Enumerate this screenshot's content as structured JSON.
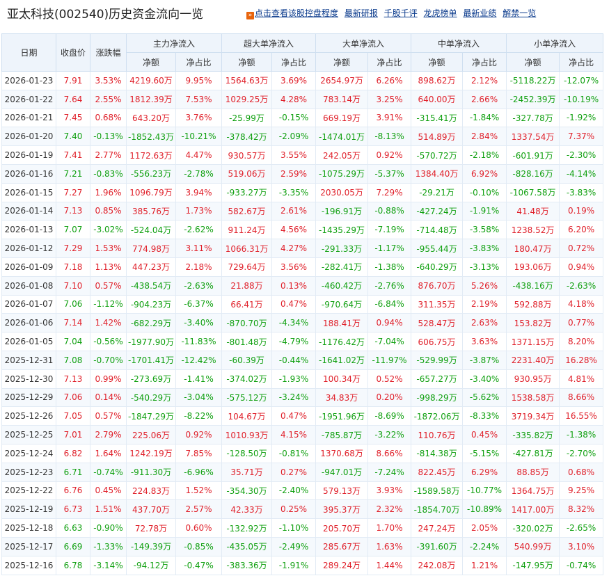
{
  "title": "亚太科技(002540)历史资金流向一览",
  "links": [
    "点击查看该股控盘程度",
    "最新研报",
    "千股千评",
    "龙虎榜单",
    "最新业绩",
    "解禁一览"
  ],
  "table": {
    "headers": {
      "date": "日期",
      "close": "收盘价",
      "change": "涨跌幅",
      "main": "主力净流入",
      "super": "超大单净流入",
      "big": "大单净流入",
      "mid": "中单净流入",
      "small": "小单净流入",
      "net": "净额",
      "ratio": "净占比"
    },
    "rows": [
      [
        "2026-01-23",
        "7.91",
        "3.53%",
        "4219.60万",
        "9.95%",
        "1564.63万",
        "3.69%",
        "2654.97万",
        "6.26%",
        "898.62万",
        "2.12%",
        "-5118.22万",
        "-12.07%"
      ],
      [
        "2026-01-22",
        "7.64",
        "2.55%",
        "1812.39万",
        "7.53%",
        "1029.25万",
        "4.28%",
        "783.14万",
        "3.25%",
        "640.00万",
        "2.66%",
        "-2452.39万",
        "-10.19%"
      ],
      [
        "2026-01-21",
        "7.45",
        "0.68%",
        "643.20万",
        "3.76%",
        "-25.99万",
        "-0.15%",
        "669.19万",
        "3.91%",
        "-315.41万",
        "-1.84%",
        "-327.78万",
        "-1.92%"
      ],
      [
        "2026-01-20",
        "7.40",
        "-0.13%",
        "-1852.43万",
        "-10.21%",
        "-378.42万",
        "-2.09%",
        "-1474.01万",
        "-8.13%",
        "514.89万",
        "2.84%",
        "1337.54万",
        "7.37%"
      ],
      [
        "2026-01-19",
        "7.41",
        "2.77%",
        "1172.63万",
        "4.47%",
        "930.57万",
        "3.55%",
        "242.05万",
        "0.92%",
        "-570.72万",
        "-2.18%",
        "-601.91万",
        "-2.30%"
      ],
      [
        "2026-01-16",
        "7.21",
        "-0.83%",
        "-556.23万",
        "-2.78%",
        "519.06万",
        "2.59%",
        "-1075.29万",
        "-5.37%",
        "1384.40万",
        "6.92%",
        "-828.16万",
        "-4.14%"
      ],
      [
        "2026-01-15",
        "7.27",
        "1.96%",
        "1096.79万",
        "3.94%",
        "-933.27万",
        "-3.35%",
        "2030.05万",
        "7.29%",
        "-29.21万",
        "-0.10%",
        "-1067.58万",
        "-3.83%"
      ],
      [
        "2026-01-14",
        "7.13",
        "0.85%",
        "385.76万",
        "1.73%",
        "582.67万",
        "2.61%",
        "-196.91万",
        "-0.88%",
        "-427.24万",
        "-1.91%",
        "41.48万",
        "0.19%"
      ],
      [
        "2026-01-13",
        "7.07",
        "-3.02%",
        "-524.04万",
        "-2.62%",
        "911.24万",
        "4.56%",
        "-1435.29万",
        "-7.19%",
        "-714.48万",
        "-3.58%",
        "1238.52万",
        "6.20%"
      ],
      [
        "2026-01-12",
        "7.29",
        "1.53%",
        "774.98万",
        "3.11%",
        "1066.31万",
        "4.27%",
        "-291.33万",
        "-1.17%",
        "-955.44万",
        "-3.83%",
        "180.47万",
        "0.72%"
      ],
      [
        "2026-01-09",
        "7.18",
        "1.13%",
        "447.23万",
        "2.18%",
        "729.64万",
        "3.56%",
        "-282.41万",
        "-1.38%",
        "-640.29万",
        "-3.13%",
        "193.06万",
        "0.94%"
      ],
      [
        "2026-01-08",
        "7.10",
        "0.57%",
        "-438.54万",
        "-2.63%",
        "21.88万",
        "0.13%",
        "-460.42万",
        "-2.76%",
        "876.70万",
        "5.26%",
        "-438.16万",
        "-2.63%"
      ],
      [
        "2026-01-07",
        "7.06",
        "-1.12%",
        "-904.23万",
        "-6.37%",
        "66.41万",
        "0.47%",
        "-970.64万",
        "-6.84%",
        "311.35万",
        "2.19%",
        "592.88万",
        "4.18%"
      ],
      [
        "2026-01-06",
        "7.14",
        "1.42%",
        "-682.29万",
        "-3.40%",
        "-870.70万",
        "-4.34%",
        "188.41万",
        "0.94%",
        "528.47万",
        "2.63%",
        "153.82万",
        "0.77%"
      ],
      [
        "2026-01-05",
        "7.04",
        "-0.56%",
        "-1977.90万",
        "-11.83%",
        "-801.48万",
        "-4.79%",
        "-1176.42万",
        "-7.04%",
        "606.75万",
        "3.63%",
        "1371.15万",
        "8.20%"
      ],
      [
        "2025-12-31",
        "7.08",
        "-0.70%",
        "-1701.41万",
        "-12.42%",
        "-60.39万",
        "-0.44%",
        "-1641.02万",
        "-11.97%",
        "-529.99万",
        "-3.87%",
        "2231.40万",
        "16.28%"
      ],
      [
        "2025-12-30",
        "7.13",
        "0.99%",
        "-273.69万",
        "-1.41%",
        "-374.02万",
        "-1.93%",
        "100.34万",
        "0.52%",
        "-657.27万",
        "-3.40%",
        "930.95万",
        "4.81%"
      ],
      [
        "2025-12-29",
        "7.06",
        "0.14%",
        "-540.29万",
        "-3.04%",
        "-575.12万",
        "-3.24%",
        "34.83万",
        "0.20%",
        "-998.29万",
        "-5.62%",
        "1538.58万",
        "8.66%"
      ],
      [
        "2025-12-26",
        "7.05",
        "0.57%",
        "-1847.29万",
        "-8.22%",
        "104.67万",
        "0.47%",
        "-1951.96万",
        "-8.69%",
        "-1872.06万",
        "-8.33%",
        "3719.34万",
        "16.55%"
      ],
      [
        "2025-12-25",
        "7.01",
        "2.79%",
        "225.06万",
        "0.92%",
        "1010.93万",
        "4.15%",
        "-785.87万",
        "-3.22%",
        "110.76万",
        "0.45%",
        "-335.82万",
        "-1.38%"
      ],
      [
        "2025-12-24",
        "6.82",
        "1.64%",
        "1242.19万",
        "7.85%",
        "-128.50万",
        "-0.81%",
        "1370.68万",
        "8.66%",
        "-814.38万",
        "-5.15%",
        "-427.81万",
        "-2.70%"
      ],
      [
        "2025-12-23",
        "6.71",
        "-0.74%",
        "-911.30万",
        "-6.96%",
        "35.71万",
        "0.27%",
        "-947.01万",
        "-7.24%",
        "822.45万",
        "6.29%",
        "88.85万",
        "0.68%"
      ],
      [
        "2025-12-22",
        "6.76",
        "0.45%",
        "224.83万",
        "1.52%",
        "-354.30万",
        "-2.40%",
        "579.13万",
        "3.93%",
        "-1589.58万",
        "-10.77%",
        "1364.75万",
        "9.25%"
      ],
      [
        "2025-12-19",
        "6.73",
        "1.51%",
        "437.70万",
        "2.57%",
        "42.33万",
        "0.25%",
        "395.37万",
        "2.32%",
        "-1854.70万",
        "-10.89%",
        "1417.00万",
        "8.32%"
      ],
      [
        "2025-12-18",
        "6.63",
        "-0.90%",
        "72.78万",
        "0.60%",
        "-132.92万",
        "-1.10%",
        "205.70万",
        "1.70%",
        "247.24万",
        "2.05%",
        "-320.02万",
        "-2.65%"
      ],
      [
        "2025-12-17",
        "6.69",
        "-1.33%",
        "-149.39万",
        "-0.85%",
        "-435.05万",
        "-2.49%",
        "285.67万",
        "1.63%",
        "-391.60万",
        "-2.24%",
        "540.99万",
        "3.10%"
      ],
      [
        "2025-12-16",
        "6.78",
        "-3.14%",
        "-94.12万",
        "-0.47%",
        "-383.36万",
        "-1.91%",
        "289.24万",
        "1.44%",
        "242.08万",
        "1.21%",
        "-147.95万",
        "-0.74%"
      ]
    ]
  },
  "colors": {
    "up": "#e0202a",
    "down": "#10a010",
    "header_bg": "#eef4fb",
    "link": "#0a3a8c"
  }
}
